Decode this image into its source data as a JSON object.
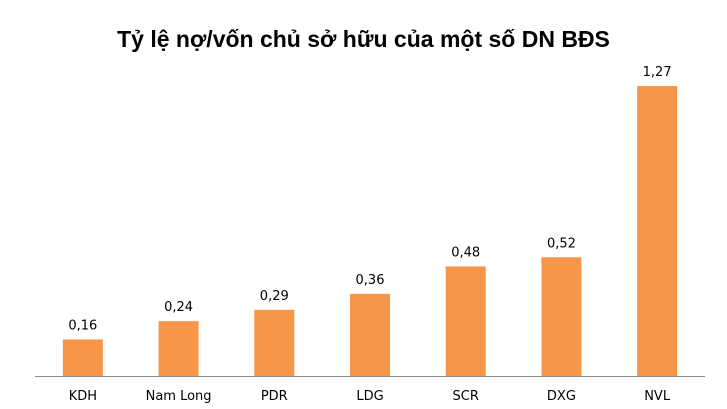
{
  "chart_data": {
    "type": "bar",
    "title": "Tỷ lệ nợ/vốn chủ sở hữu của một số DN BĐS",
    "xlabel": "",
    "ylabel": "",
    "categories": [
      "KDH",
      "Nam Long",
      "PDR",
      "LDG",
      "SCR",
      "DXG",
      "NVL"
    ],
    "values": [
      0.16,
      0.24,
      0.29,
      0.36,
      0.48,
      0.52,
      1.27
    ],
    "value_labels": [
      "0,16",
      "0,24",
      "0,29",
      "0,36",
      "0,48",
      "0,52",
      "1,27"
    ],
    "ylim": [
      0,
      1.27
    ],
    "grid": false,
    "legend": "none",
    "bar_color": "#F79646",
    "axis_color": "#8C8C8C"
  }
}
